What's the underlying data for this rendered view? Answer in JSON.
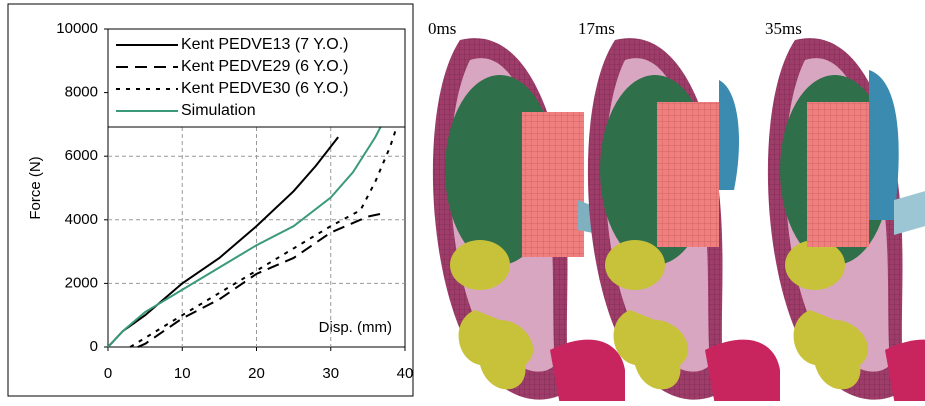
{
  "chart_data": {
    "type": "line",
    "xlabel": "Disp. (mm)",
    "ylabel": "Force (N)",
    "xlim": [
      0,
      40
    ],
    "xticks": [
      0,
      10,
      20,
      30,
      40
    ],
    "ylim": [
      0,
      10000
    ],
    "yticks": [
      0,
      2000,
      4000,
      6000,
      8000,
      10000
    ],
    "grid": true,
    "legend": "top",
    "series": [
      {
        "name": "Kent PEDVE13 (7 Y.O.)",
        "color": "#000000",
        "style": "solid",
        "x": [
          0,
          2,
          5,
          10,
          15,
          20,
          25,
          28,
          31
        ],
        "values": [
          0,
          500,
          1000,
          2000,
          2800,
          3800,
          4900,
          5700,
          6600
        ]
      },
      {
        "name": "Kent PEDVE29 (6 Y.O.)",
        "color": "#000000",
        "style": "dashed",
        "x": [
          4,
          5,
          10,
          15,
          20,
          25,
          30,
          35,
          37
        ],
        "values": [
          0,
          100,
          900,
          1500,
          2300,
          2800,
          3600,
          4100,
          4200
        ]
      },
      {
        "name": "Kent PEDVE30 (6 Y.O.)",
        "color": "#000000",
        "style": "dotted",
        "x": [
          3,
          10,
          20,
          30,
          34,
          36,
          38,
          39
        ],
        "values": [
          0,
          1000,
          2400,
          3800,
          4300,
          5200,
          6300,
          7000
        ]
      },
      {
        "name": "Simulation",
        "color": "#3a9a78",
        "style": "solid",
        "x": [
          0,
          2,
          5,
          10,
          15,
          20,
          25,
          30,
          33,
          36,
          38
        ],
        "values": [
          0,
          500,
          1100,
          1800,
          2500,
          3200,
          3800,
          4700,
          5500,
          6600,
          7500
        ]
      }
    ]
  },
  "panels": [
    {
      "label": "0ms"
    },
    {
      "label": "17ms"
    },
    {
      "label": "35ms"
    }
  ]
}
